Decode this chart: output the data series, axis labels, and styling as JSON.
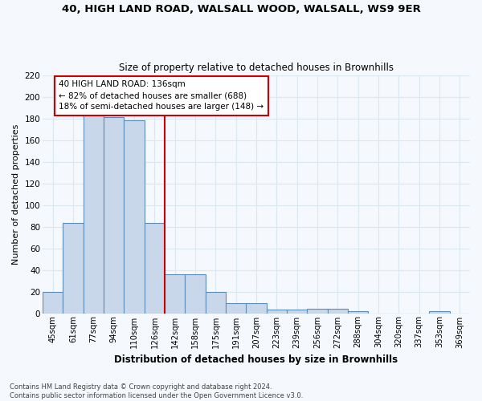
{
  "title1": "40, HIGH LAND ROAD, WALSALL WOOD, WALSALL, WS9 9ER",
  "title2": "Size of property relative to detached houses in Brownhills",
  "xlabel": "Distribution of detached houses by size in Brownhills",
  "ylabel": "Number of detached properties",
  "bin_labels": [
    "45sqm",
    "61sqm",
    "77sqm",
    "94sqm",
    "110sqm",
    "126sqm",
    "142sqm",
    "158sqm",
    "175sqm",
    "191sqm",
    "207sqm",
    "223sqm",
    "239sqm",
    "256sqm",
    "272sqm",
    "288sqm",
    "304sqm",
    "320sqm",
    "337sqm",
    "353sqm",
    "369sqm"
  ],
  "bar_heights": [
    20,
    83,
    183,
    181,
    178,
    83,
    36,
    36,
    20,
    9,
    9,
    3,
    3,
    4,
    4,
    2,
    0,
    0,
    0,
    2,
    0
  ],
  "bar_color": "#c8d8ea",
  "bar_edge_color": "#5b8db8",
  "vline_x": 5.5,
  "vline_color": "#cc0000",
  "annotation_text": "40 HIGH LAND ROAD: 136sqm\n← 82% of detached houses are smaller (688)\n18% of semi-detached houses are larger (148) →",
  "annotation_box_color": "#ffffff",
  "annotation_box_edge": "#cc0000",
  "footnote": "Contains HM Land Registry data © Crown copyright and database right 2024.\nContains public sector information licensed under the Open Government Licence v3.0.",
  "ylim": [
    0,
    220
  ],
  "yticks": [
    0,
    20,
    40,
    60,
    80,
    100,
    120,
    140,
    160,
    180,
    200,
    220
  ],
  "background_color": "#f5f8fc",
  "grid_color": "#dce8f0"
}
